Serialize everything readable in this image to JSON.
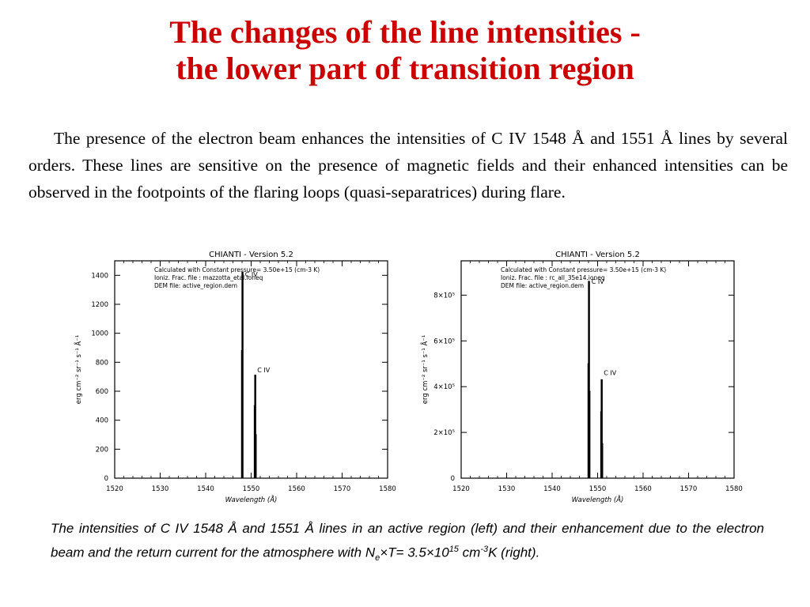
{
  "title": {
    "line1": "The changes of the line intensities -",
    "line2": "the lower part of transition region"
  },
  "paragraph": "The presence of the electron beam enhances the intensities of C IV 1548 Å  and 1551 Å lines by several orders. These lines are sensitive on the presence of magnetic fields and their enhanced intensities can be observed in the footpoints of the flaring loops (quasi-separatrices) during flare.",
  "caption": {
    "text": "The intensities of C IV 1548 Å and 1551 Å lines in an active region (left) and their enhancement due to the electron beam and the return current for the atmosphere with ",
    "ne_symbol": "N",
    "ne_sub": "e",
    "times": "×",
    "t_eq": "T= 3.5×10",
    "exp1": "15",
    "unit_cm": " cm",
    "exp2": "-3",
    "tail": "K (right)."
  },
  "chart_data": [
    {
      "type": "line",
      "title": "CHIANTI - Version 5.2",
      "info_lines": [
        "Calculated with Constant pressure=   3.50e+15 (cm-3 K)",
        "Ioniz. Frac. file : mazzotta_etal.ioneq",
        "DEM file: active_region.dem"
      ],
      "xlabel": "Wavelength (Å)",
      "ylabel": "erg cm⁻² sr⁻¹ s⁻¹ Å⁻¹",
      "xlim": [
        1520,
        1580
      ],
      "ylim": [
        0,
        1500
      ],
      "xticks": [
        1520,
        1530,
        1540,
        1550,
        1560,
        1570,
        1580
      ],
      "xtick_labels": [
        "1520",
        "1530",
        "1540",
        "1550",
        "1560",
        "1570",
        "1580"
      ],
      "yticks": [
        0,
        200,
        400,
        600,
        800,
        1000,
        1200,
        1400
      ],
      "ytick_labels": [
        "0",
        "200",
        "400",
        "600",
        "800",
        "1000",
        "1200",
        "1400"
      ],
      "series": [
        {
          "x": [
            1548.0,
            1548.0,
            1548.2,
            1548.2
          ],
          "y": [
            0,
            1420,
            1420,
            0
          ]
        },
        {
          "x": [
            1547.9,
            1547.9,
            1548.1,
            1548.1
          ],
          "y": [
            0,
            880,
            880,
            0
          ]
        },
        {
          "x": [
            1550.8,
            1550.8,
            1551.0,
            1551.0
          ],
          "y": [
            0,
            710,
            710,
            0
          ]
        },
        {
          "x": [
            1550.7,
            1550.7,
            1550.9,
            1550.9
          ],
          "y": [
            0,
            500,
            500,
            0
          ]
        },
        {
          "x": [
            1551.0,
            1551.0,
            1551.1,
            1551.1
          ],
          "y": [
            0,
            300,
            300,
            0
          ]
        }
      ],
      "annotations": [
        {
          "text": "C IV",
          "x": 1551.0,
          "y": 730
        },
        {
          "text": "C IV",
          "x": 1548.3,
          "y": 1390
        }
      ]
    },
    {
      "type": "line",
      "title": "CHIANTI - Version 5.2",
      "info_lines": [
        "Calculated with Constant pressure=   3.50e+15 (cm-3 K)",
        "Ioniz. Frac. file : rc_all_35e14.ioneq",
        "DEM file: active_region.dem"
      ],
      "xlabel": "Wavelength (Å)",
      "ylabel": "erg cm⁻² sr⁻¹ s⁻¹ Å⁻¹",
      "xlim": [
        1520,
        1580
      ],
      "ylim": [
        0,
        950000
      ],
      "xticks": [
        1520,
        1530,
        1540,
        1550,
        1560,
        1570,
        1580
      ],
      "xtick_labels": [
        "1520",
        "1530",
        "1540",
        "1550",
        "1560",
        "1570",
        "1580"
      ],
      "yticks": [
        0,
        200000,
        400000,
        600000,
        800000
      ],
      "ytick_labels": [
        "0",
        "2×10⁵",
        "4×10⁵",
        "6×10⁵",
        "8×10⁵"
      ],
      "series": [
        {
          "x": [
            1548.0,
            1548.0,
            1548.2,
            1548.2
          ],
          "y": [
            0,
            860000,
            860000,
            0
          ]
        },
        {
          "x": [
            1547.9,
            1547.9,
            1548.1,
            1548.1
          ],
          "y": [
            0,
            500000,
            500000,
            0
          ]
        },
        {
          "x": [
            1548.2,
            1548.2,
            1548.3,
            1548.3
          ],
          "y": [
            0,
            380000,
            380000,
            0
          ]
        },
        {
          "x": [
            1550.8,
            1550.8,
            1551.0,
            1551.0
          ],
          "y": [
            0,
            430000,
            430000,
            0
          ]
        },
        {
          "x": [
            1550.7,
            1550.7,
            1550.9,
            1550.9
          ],
          "y": [
            0,
            290000,
            290000,
            0
          ]
        },
        {
          "x": [
            1551.0,
            1551.0,
            1551.1,
            1551.1
          ],
          "y": [
            0,
            150000,
            150000,
            0
          ]
        }
      ],
      "annotations": [
        {
          "text": "C IV",
          "x": 1551.0,
          "y": 450000
        },
        {
          "text": "C IV",
          "x": 1548.3,
          "y": 850000
        }
      ]
    }
  ]
}
